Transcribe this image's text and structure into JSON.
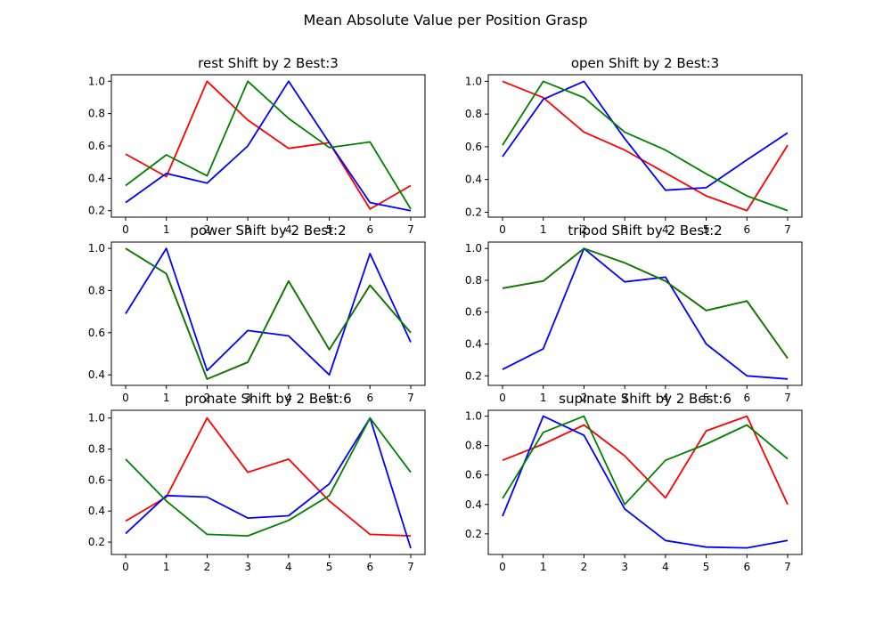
{
  "suptitle": "Mean Absolute Value per Position Grasp",
  "colors": {
    "red": "#ff0000",
    "blue": "#0000ff",
    "green": "#008000"
  },
  "chart_data": [
    {
      "type": "line",
      "title": "rest Shift by 2 Best:3",
      "x": [
        0,
        1,
        2,
        3,
        4,
        5,
        6,
        7
      ],
      "xticks": [
        "0",
        "1",
        "2",
        "3",
        "4",
        "5",
        "6",
        "7"
      ],
      "ylim": [
        0.16,
        1.04
      ],
      "yticks": [
        "0.2",
        "0.4",
        "0.6",
        "0.8",
        "1.0"
      ],
      "series": [
        {
          "color": "#ff0000",
          "values": [
            0.55,
            0.41,
            1.0,
            0.76,
            0.585,
            0.62,
            0.21,
            0.355
          ]
        },
        {
          "color": "#0000ff",
          "values": [
            0.25,
            0.43,
            0.37,
            0.6,
            1.0,
            0.62,
            0.25,
            0.2
          ]
        },
        {
          "color": "#008000",
          "values": [
            0.355,
            0.545,
            0.415,
            1.0,
            0.77,
            0.59,
            0.625,
            0.21
          ]
        }
      ]
    },
    {
      "type": "line",
      "title": "open Shift by 2 Best:3",
      "x": [
        0,
        1,
        2,
        3,
        4,
        5,
        6,
        7
      ],
      "xticks": [
        "0",
        "1",
        "2",
        "3",
        "4",
        "5",
        "6",
        "7"
      ],
      "ylim": [
        0.17,
        1.04
      ],
      "yticks": [
        "0.2",
        "0.4",
        "0.6",
        "0.8",
        "1.0"
      ],
      "series": [
        {
          "color": "#ff0000",
          "values": [
            1.0,
            0.9,
            0.69,
            0.58,
            0.44,
            0.3,
            0.21,
            0.61
          ]
        },
        {
          "color": "#0000ff",
          "values": [
            0.54,
            0.89,
            1.0,
            0.65,
            0.335,
            0.35,
            0.52,
            0.685
          ]
        },
        {
          "color": "#008000",
          "values": [
            0.61,
            1.0,
            0.9,
            0.69,
            0.58,
            0.435,
            0.3,
            0.21
          ]
        }
      ]
    },
    {
      "type": "line",
      "title": "power Shift by 2 Best:2",
      "x": [
        0,
        1,
        2,
        3,
        4,
        5,
        6,
        7
      ],
      "xticks": [
        "0",
        "1",
        "2",
        "3",
        "4",
        "5",
        "6",
        "7"
      ],
      "ylim": [
        0.35,
        1.03
      ],
      "yticks": [
        "0.4",
        "0.6",
        "0.8",
        "1.0"
      ],
      "series": [
        {
          "color": "#ff0000",
          "values": [
            1.0,
            0.88,
            0.38,
            0.46,
            0.845,
            0.52,
            0.825,
            0.6
          ]
        },
        {
          "color": "#0000ff",
          "values": [
            0.69,
            1.0,
            0.42,
            0.61,
            0.585,
            0.4,
            0.975,
            0.555
          ]
        },
        {
          "color": "#008000",
          "values": [
            1.0,
            0.88,
            0.38,
            0.46,
            0.845,
            0.52,
            0.825,
            0.6
          ]
        }
      ]
    },
    {
      "type": "line",
      "title": "tripod Shift by 2 Best:2",
      "x": [
        0,
        1,
        2,
        3,
        4,
        5,
        6,
        7
      ],
      "xticks": [
        "0",
        "1",
        "2",
        "3",
        "4",
        "5",
        "6",
        "7"
      ],
      "ylim": [
        0.14,
        1.04
      ],
      "yticks": [
        "0.2",
        "0.4",
        "0.6",
        "0.8",
        "1.0"
      ],
      "series": [
        {
          "color": "#ff0000",
          "values": [
            0.75,
            0.795,
            1.0,
            0.91,
            0.795,
            0.61,
            0.67,
            0.31
          ]
        },
        {
          "color": "#0000ff",
          "values": [
            0.24,
            0.37,
            1.0,
            0.79,
            0.82,
            0.4,
            0.2,
            0.18
          ]
        },
        {
          "color": "#008000",
          "values": [
            0.75,
            0.795,
            1.0,
            0.91,
            0.795,
            0.61,
            0.67,
            0.31
          ]
        }
      ]
    },
    {
      "type": "line",
      "title": "pronate Shift by 2 Best:6",
      "x": [
        0,
        1,
        2,
        3,
        4,
        5,
        6,
        7
      ],
      "xticks": [
        "0",
        "1",
        "2",
        "3",
        "4",
        "5",
        "6",
        "7"
      ],
      "ylim": [
        0.12,
        1.05
      ],
      "yticks": [
        "0.2",
        "0.4",
        "0.6",
        "0.8",
        "1.0"
      ],
      "series": [
        {
          "color": "#ff0000",
          "values": [
            0.335,
            0.49,
            1.0,
            0.65,
            0.735,
            0.465,
            0.25,
            0.24
          ]
        },
        {
          "color": "#0000ff",
          "values": [
            0.255,
            0.5,
            0.49,
            0.355,
            0.37,
            0.575,
            1.0,
            0.16
          ]
        },
        {
          "color": "#008000",
          "values": [
            0.735,
            0.465,
            0.25,
            0.24,
            0.34,
            0.5,
            1.0,
            0.65
          ]
        }
      ]
    },
    {
      "type": "line",
      "title": "supinate Shift by 2 Best:6",
      "x": [
        0,
        1,
        2,
        3,
        4,
        5,
        6,
        7
      ],
      "xticks": [
        "0",
        "1",
        "2",
        "3",
        "4",
        "5",
        "6",
        "7"
      ],
      "ylim": [
        0.06,
        1.04
      ],
      "yticks": [
        "0.2",
        "0.4",
        "0.6",
        "0.8",
        "1.0"
      ],
      "series": [
        {
          "color": "#ff0000",
          "values": [
            0.7,
            0.81,
            0.94,
            0.73,
            0.445,
            0.9,
            1.0,
            0.4
          ]
        },
        {
          "color": "#0000ff",
          "values": [
            0.32,
            1.0,
            0.87,
            0.37,
            0.155,
            0.11,
            0.105,
            0.155
          ]
        },
        {
          "color": "#008000",
          "values": [
            0.44,
            0.89,
            1.0,
            0.4,
            0.7,
            0.81,
            0.94,
            0.71
          ]
        }
      ]
    }
  ]
}
